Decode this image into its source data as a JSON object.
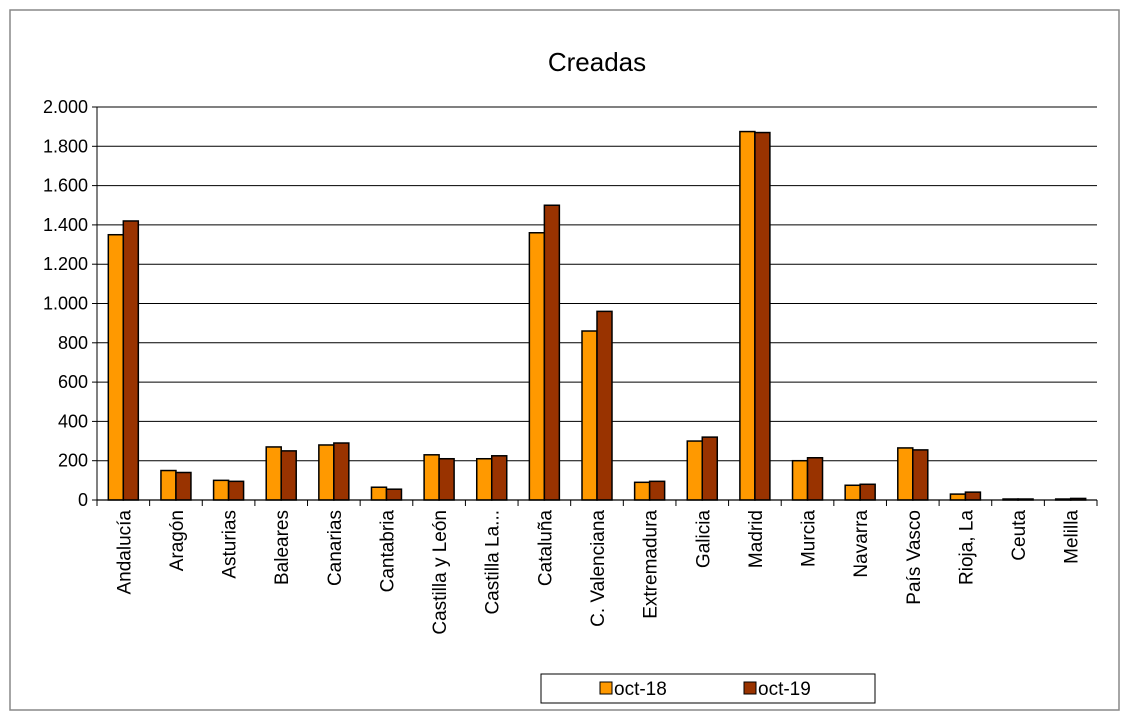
{
  "chart_data": {
    "type": "bar",
    "title": "Creadas",
    "categories": [
      "Andalucía",
      "Aragón",
      "Asturias",
      "Baleares",
      "Canarias",
      "Cantabria",
      "Castilla y León",
      "Castilla  La...",
      "Cataluña",
      "C. Valenciana",
      "Extremadura",
      "Galicia",
      "Madrid",
      "Murcia",
      "Navarra",
      "País Vasco",
      "Rioja, La",
      "Ceuta",
      "Melilla"
    ],
    "series": [
      {
        "name": "oct-18",
        "values": [
          1350,
          150,
          100,
          270,
          280,
          65,
          230,
          210,
          1360,
          860,
          90,
          300,
          1875,
          200,
          75,
          265,
          30,
          5,
          5
        ]
      },
      {
        "name": "oct-19",
        "values": [
          1420,
          140,
          95,
          250,
          290,
          55,
          210,
          225,
          1500,
          960,
          95,
          320,
          1870,
          215,
          80,
          255,
          40,
          5,
          8
        ]
      }
    ],
    "ylim": [
      0,
      2000
    ],
    "yticks": [
      0,
      200,
      400,
      600,
      800,
      1000,
      1200,
      1400,
      1600,
      1800,
      2000
    ],
    "ytick_labels": [
      "0",
      "200",
      "400",
      "600",
      "800",
      "1.000",
      "1.200",
      "1.400",
      "1.600",
      "1.800",
      "2.000"
    ],
    "grid": true,
    "legend_position": "bottom",
    "colors": {
      "oct-18": "#FF9900",
      "oct-19": "#993300"
    }
  }
}
